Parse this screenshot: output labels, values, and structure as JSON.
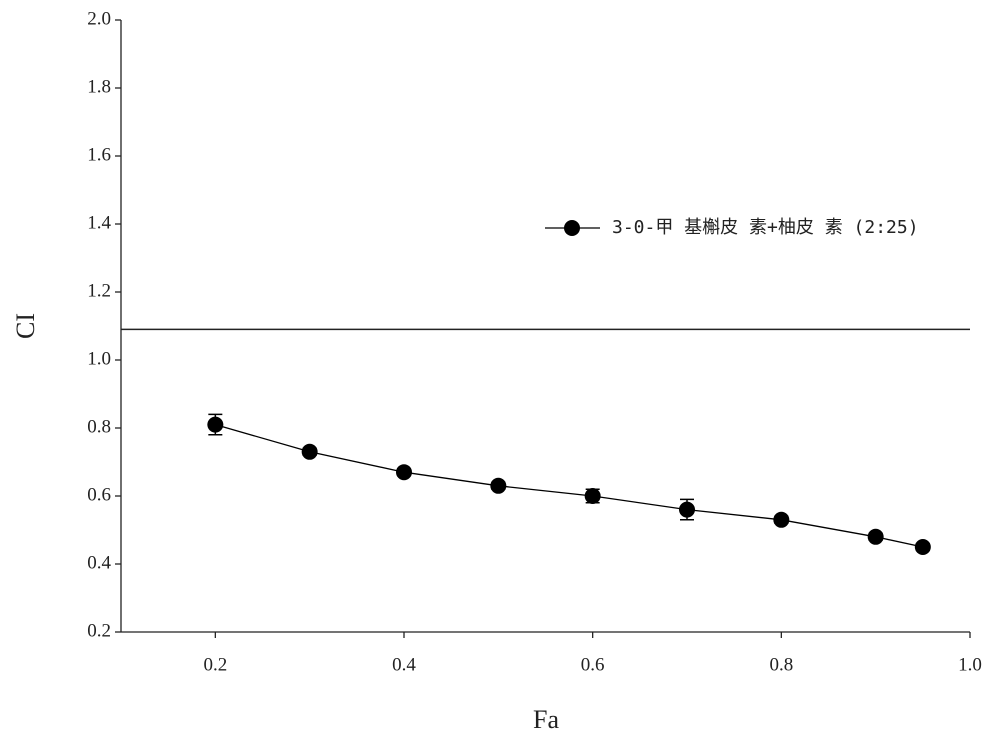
{
  "chart_data": {
    "type": "line",
    "x_label": "Fa",
    "y_label": "CI",
    "x": [
      0.2,
      0.3,
      0.4,
      0.5,
      0.6,
      0.7,
      0.8,
      0.9,
      0.95
    ],
    "series": [
      {
        "name": "3-0-甲 基槲皮 素+柚皮 素 (2:25)",
        "color": "#000000",
        "values": [
          0.81,
          0.73,
          0.67,
          0.63,
          0.6,
          0.56,
          0.53,
          0.48,
          0.45
        ],
        "errors": [
          0.03,
          0.01,
          0.01,
          0.01,
          0.02,
          0.03,
          0.01,
          0.01,
          0.01
        ]
      }
    ],
    "reference_line": 1.09,
    "xlim": [
      0.1,
      1.0
    ],
    "xticks": [
      0.2,
      0.4,
      0.6,
      0.8,
      {
        "value": 1.0,
        "label": "1.0"
      }
    ],
    "ylim": [
      0.2,
      2.0
    ],
    "yticks": [
      0.2,
      0.4,
      0.6,
      0.8,
      {
        "value": 1.0,
        "label": "1.0"
      },
      1.2,
      1.4,
      1.6,
      1.8,
      {
        "value": 2.0,
        "label": "2.0"
      }
    ],
    "legend": "upper right",
    "grid": false
  }
}
